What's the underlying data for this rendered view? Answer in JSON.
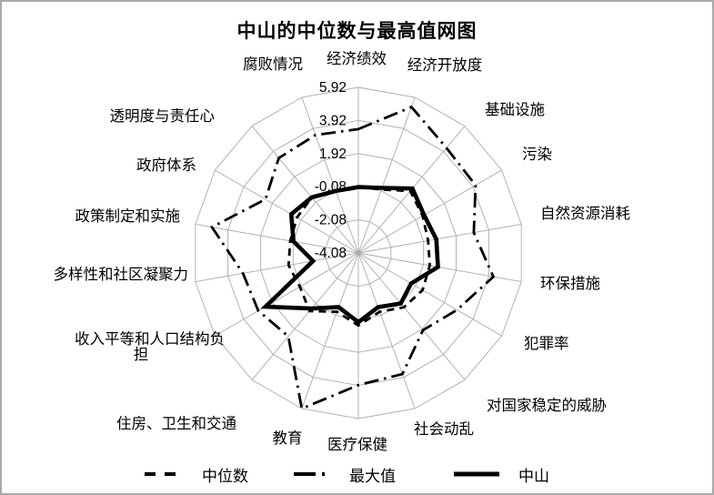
{
  "chart_data": {
    "type": "radar",
    "title": "中山的中位数与最高值网图",
    "categories": [
      "经济绩效",
      "经济开放度",
      "基础设施",
      "污染",
      "自然资源消耗",
      "环保措施",
      "犯罪率",
      "对国家稳定的威胁",
      "社会动乱",
      "医疗保健",
      "教育",
      "住房、卫生和交通",
      "收入平等和人口结构负担",
      "多样性和社区凝聚力",
      "政策制定和实施",
      "政府体系",
      "透明度与责任心",
      "腐败情况"
    ],
    "series": [
      {
        "name": "中位数",
        "style": "dashed",
        "values": [
          -0.1,
          0.0,
          0.8,
          0.4,
          0.2,
          0.3,
          0.4,
          0.2,
          -0.3,
          0.3,
          -0.3,
          0.5,
          0.0,
          0.2,
          0.1,
          0.2,
          0.3,
          -0.1
        ]
      },
      {
        "name": "最大值",
        "style": "dash-dot",
        "values": [
          3.4,
          5.3,
          4.2,
          4.1,
          3.0,
          4.2,
          2.8,
          2.0,
          3.7,
          3.9,
          5.92,
          2.5,
          2.9,
          3.0,
          4.9,
          2.4,
          3.4,
          3.5
        ]
      },
      {
        "name": "中山",
        "style": "solid-thick",
        "values": [
          -0.1,
          0.1,
          1.0,
          0.5,
          0.7,
          0.8,
          -0.4,
          -0.1,
          -0.6,
          0.1,
          -0.6,
          0.3,
          2.4,
          -1.3,
          -0.1,
          0.6,
          0.3,
          -0.1
        ]
      }
    ],
    "radial_axis": {
      "min": -4.08,
      "max": 5.92,
      "tick_interval": 2,
      "tick_labels": [
        "5.92",
        "3.92",
        "1.92",
        "-0.08",
        "-2.08",
        "-4.08"
      ]
    },
    "grid": true,
    "legend_position": "bottom"
  },
  "colors": {
    "series_line": "#000000",
    "grid_line": "#ababab",
    "background": "#ffffff",
    "frame_border": "#a9a9a9"
  }
}
